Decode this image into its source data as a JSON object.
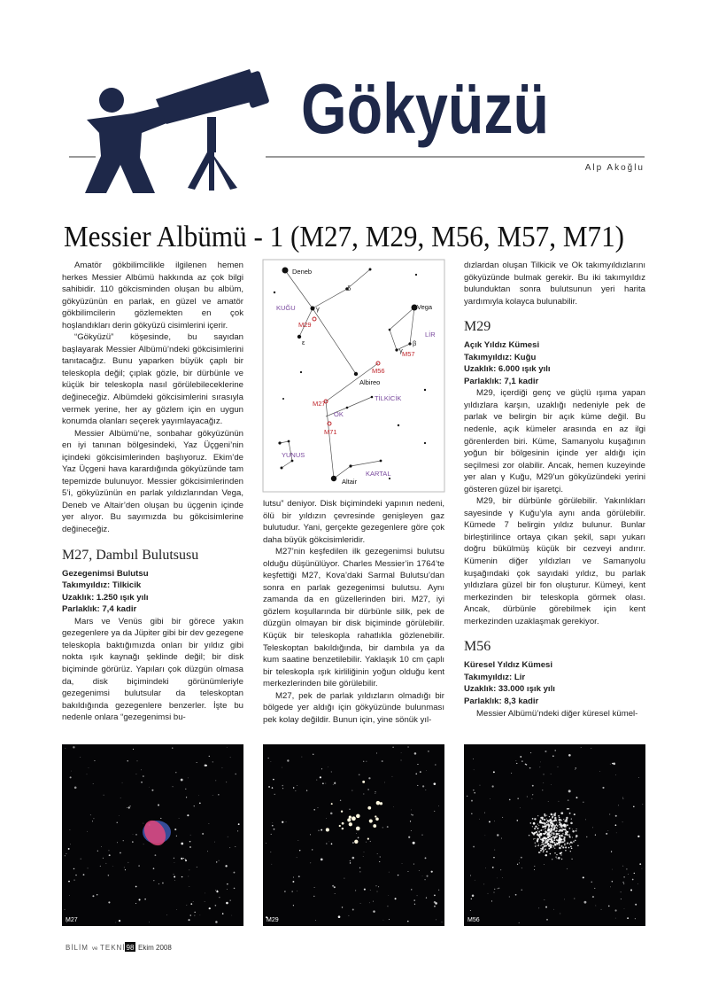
{
  "header": {
    "section_title": "Gökyüzü",
    "author": "Alp Akoğlu"
  },
  "article": {
    "title": "Messier Albümü - 1 (M27, M29, M56, M57, M71)",
    "intro": [
      "Amatör gökbilimcilikle ilgilenen hemen herkes Messier Albümü hakkında az çok bilgi sahibidir. 110 gökcisminden oluşan bu albüm, gökyüzünün en parlak, en güzel ve amatör gökbilimcilerin gözlemekten en çok hoşlandıkları derin gökyüzü cisimlerini içerir.",
      "“Gökyüzü” köşesinde, bu sayıdan başlayarak Messier Albümü’ndeki gökcisimlerini tanıtacağız. Bunu yaparken büyük çaplı bir teleskopla değil; çıplak gözle, bir dürbünle ve küçük bir teleskopla nasıl görülebileceklerine değineceğiz. Albümdeki gökcisimlerini sırasıyla vermek yerine, her ay gözlem için en uygun konumda olanları seçerek yayımlayacağız.",
      "Messier Albümü’ne, sonbahar gökyüzünün en iyi tanınan bölgesindeki, Yaz Üçgeni’nin içindeki gökcisimlerinden başlıyoruz. Ekim’de Yaz Üçgeni hava karardığında gökyüzünde tam tepemizde bulunuyor. Messier gökcisimlerinden 5’i, gökyüzünün en parlak yıldızlarından Vega, Deneb ve Altair’den oluşan bu üçgenin içinde yer alıyor. Bu sayımızda bu gökcisimlerine değineceğiz."
    ],
    "sections": [
      {
        "heading": "M27, Dambıl Bulutsusu",
        "facts": [
          "Gezegenimsi Bulutsu",
          "Takımyıldız: Tilkicik",
          "Uzaklık: 1.250 ışık yılı",
          "Parlaklık: 7,4 kadir"
        ],
        "paragraphs": [
          "Mars ve Venüs gibi bir görece yakın gezegenlere ya da Jüpiter gibi bir dev gezegene teleskopla baktığımızda onları bir yıldız gibi nokta ışık kaynağı şeklinde değil; bir disk biçiminde görürüz. Yapıları çok düzgün olmasa da, disk biçimindeki görünümleriyle gezegenimsi bulutsular da teleskoptan bakıldığında gezegenlere benzerler. İşte bu nedenle onlara “gezegenimsi bu-",
          "lutsu” deniyor. Disk biçimindeki yapının nedeni, ölü bir yıldızın çevresinde genişleyen gaz bulutudur. Yani, gerçekte gezegenlere göre çok daha büyük gökcisimleridir.",
          "M27’nin keşfedilen ilk gezegenimsi bulutsu olduğu düşünülüyor. Charles Messier’in 1764’te keşfettiği M27, Kova’daki Sarmal Bulutsu’dan sonra en parlak gezegenimsi bulutsu. Aynı zamanda da en güzellerinden biri. M27, iyi gözlem koşullarında bir dürbünle silik, pek de düzgün olmayan bir disk biçiminde görülebilir. Küçük bir teleskopla rahatlıkla gözlenebilir. Teleskoptan bakıldığında, bir dambıla ya da kum saatine benzetilebilir. Yaklaşık 10 cm çaplı bir teleskopla ışık kirliliğinin yoğun olduğu kent merkezlerinden bile görülebilir.",
          "M27, pek de parlak yıldızların olmadığı bir bölgede yer aldığı için gökyüzünde bulunması pek kolay değildir. Bunun için, yine sönük yıl-",
          "dızlardan oluşan Tilkicik ve Ok takımyıldızlarını gökyüzünde bulmak gerekir. Bu iki takımyıldız bulunduktan sonra bulutsunun yeri harita yardımıyla kolayca bulunabilir."
        ]
      },
      {
        "heading": "M29",
        "facts": [
          "Açık Yıldız Kümesi",
          "Takımyıldız: Kuğu",
          "Uzaklık: 6.000 ışık yılı",
          "Parlaklık: 7,1 kadir"
        ],
        "paragraphs": [
          "M29, içerdiği genç ve güçlü ışıma yapan yıldızlara karşın, uzaklığı nedeniyle pek de parlak ve belirgin bir açık küme değil. Bu nedenle, açık kümeler arasında en az ilgi görenlerden biri. Küme, Samanyolu kuşağının yoğun bir bölgesinin içinde yer aldığı için seçilmesi zor olabilir. Ancak, hemen kuzeyinde yer alan γ Kuğu, M29’un gökyüzündeki yerini gösteren güzel bir işaretçi.",
          "M29, bir dürbünle görülebilir. Yakınlıkları sayesinde γ Kuğu’yla aynı anda görülebilir. Kümede 7 belirgin yıldız bulunur. Bunlar birleştirilince ortaya çıkan şekil, sapı yukarı doğru bükülmüş küçük bir cezveyi andırır. Kümenin diğer yıldızları ve Samanyolu kuşağındaki çok sayıdaki yıldız, bu parlak yıldızlara güzel bir fon oluşturur. Kümeyi, kent merkezinden bir teleskopla görmek olası. Ancak, dürbünle görebilmek için kent merkezinden uzaklaşmak gerekiyor."
        ]
      },
      {
        "heading": "M56",
        "facts": [
          "Küresel Yıldız Kümesi",
          "Takımyıldız: Lir",
          "Uzaklık: 33.000 ışık yılı",
          "Parlaklık: 8,3 kadir"
        ],
        "paragraphs": [
          "Messier Albümü’ndeki diğer küresel kümel-"
        ]
      }
    ]
  },
  "star_map": {
    "labels": [
      "Deneb",
      "KUĞU",
      "γ",
      "δ",
      "ε",
      "M29",
      "Vega",
      "LİR",
      "β",
      "γ",
      "M57",
      "M56",
      "Albireo",
      "TİLKİCİK",
      "M27",
      "OK",
      "M71",
      "YUNUS",
      "Altair",
      "KARTAL"
    ]
  },
  "photos": [
    "M27",
    "M29",
    "M56"
  ],
  "footer": {
    "magazine_1": "BİLİM",
    "magazine_2": "ve",
    "magazine_3": "TEKNİK",
    "page": 98,
    "issue": "Ekim 2008"
  }
}
